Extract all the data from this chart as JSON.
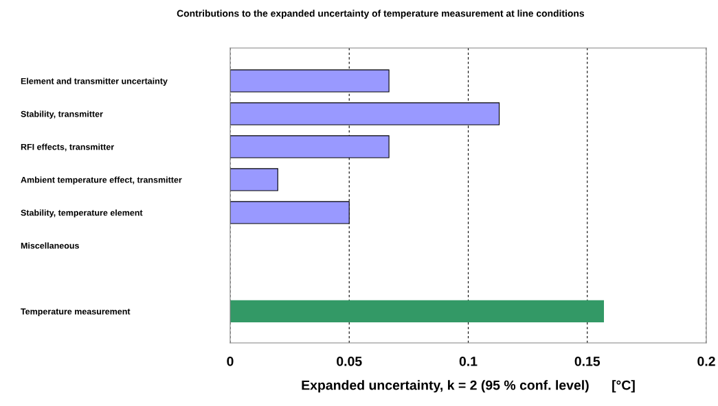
{
  "chart_data": {
    "type": "bar",
    "orientation": "horizontal",
    "title": "Contributions to the expanded uncertainty of temperature measurement at line conditions",
    "xlabel": "Expanded uncertainty, k = 2 (95 % conf. level)      [°C]",
    "categories": [
      "Element and transmitter uncertainty",
      "Stability, transmitter",
      "RFI effects, transmitter",
      "Ambient temperature effect, transmitter",
      "Stability, temperature element",
      "Miscellaneous",
      null,
      "Temperature measurement"
    ],
    "values": [
      0.0667,
      0.113,
      0.0667,
      0.02,
      0.05,
      null,
      null,
      0.157
    ],
    "colors": [
      "#9999ff",
      "#9999ff",
      "#9999ff",
      "#9999ff",
      "#9999ff",
      "#9999ff",
      "#9999ff",
      "#339966"
    ],
    "xlim": [
      0,
      0.2
    ],
    "xticks": [
      0,
      0.05,
      0.1,
      0.15,
      0.2
    ],
    "grid": "x",
    "legend": false
  }
}
